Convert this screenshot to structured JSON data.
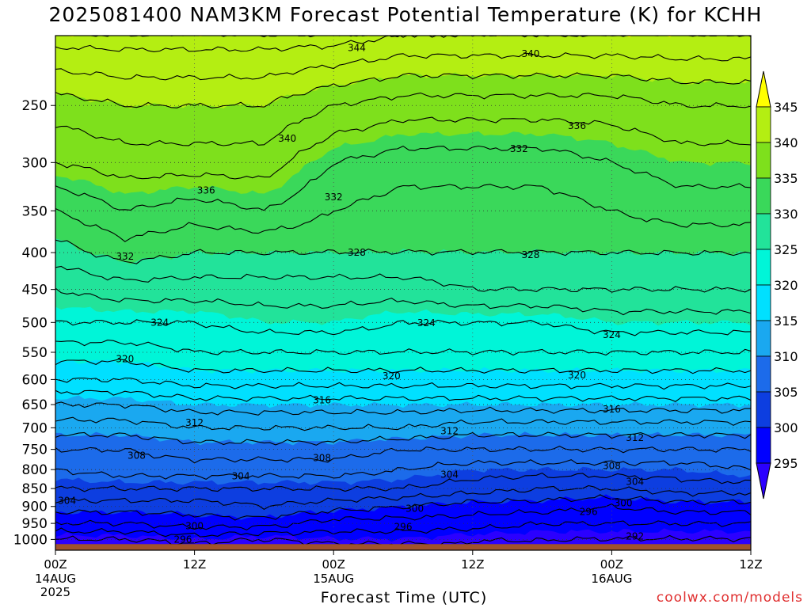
{
  "title": "2025081400 NAM3KM Forecast Potential Temperature (K) for KCHH",
  "credit": "coolwx.com/models",
  "colors": {
    "ground": "#a0522d",
    "contour_line": "#000000",
    "fill_levels": [
      "#2b00ff",
      "#0000ff",
      "#0d3ee0",
      "#1c6bea",
      "#1aa8f0",
      "#00e0ff",
      "#00f5d8",
      "#22e39a",
      "#3ad85a",
      "#7ee01c",
      "#b4ee12",
      "#ffff00"
    ]
  },
  "chart_data": {
    "type": "heatmap",
    "title": "2025081400 NAM3KM Forecast Potential Temperature (K) for KCHH",
    "xlabel": "Forecast Time (UTC)",
    "ylabel": "",
    "x_ticks": [
      {
        "hours": 0,
        "label": "00Z",
        "sub": [
          "14AUG",
          "2025"
        ]
      },
      {
        "hours": 12,
        "label": "12Z",
        "sub": []
      },
      {
        "hours": 24,
        "label": "00Z",
        "sub": [
          "15AUG"
        ]
      },
      {
        "hours": 36,
        "label": "12Z",
        "sub": []
      },
      {
        "hours": 48,
        "label": "00Z",
        "sub": [
          "16AUG"
        ]
      },
      {
        "hours": 60,
        "label": "12Z",
        "sub": []
      }
    ],
    "x_range_hours": [
      0,
      60
    ],
    "y_axis_pressure_hPa": [
      250,
      300,
      350,
      400,
      450,
      500,
      550,
      600,
      650,
      700,
      750,
      800,
      850,
      900,
      950,
      1000
    ],
    "y_range_hPa": [
      200,
      1035
    ],
    "ground_level_hPa": 1015,
    "colorbar": {
      "ticks": [
        345,
        340,
        335,
        330,
        325,
        320,
        315,
        310,
        305,
        300,
        295
      ],
      "levels": [
        290,
        295,
        300,
        305,
        310,
        315,
        320,
        325,
        330,
        335,
        340,
        345,
        350
      ]
    },
    "grid": true,
    "times_hours": [
      0,
      6,
      12,
      18,
      24,
      30,
      36,
      42,
      48,
      54,
      60
    ],
    "theta_profiles": [
      {
        "p": 1010,
        "values": [
          293,
          293,
          294,
          293,
          294,
          294,
          294,
          294,
          293,
          293,
          293
        ]
      },
      {
        "p": 1000,
        "values": [
          294,
          294,
          295,
          294,
          295,
          295,
          294,
          294,
          294,
          294,
          294
        ]
      },
      {
        "p": 950,
        "values": [
          298,
          298,
          299,
          299,
          297,
          297,
          297,
          296,
          296,
          296,
          296
        ]
      },
      {
        "p": 900,
        "values": [
          301,
          301,
          301,
          302,
          301,
          300,
          299,
          299,
          298,
          299,
          299
        ]
      },
      {
        "p": 850,
        "values": [
          304,
          304,
          304,
          304,
          304,
          304,
          303,
          302,
          302,
          303,
          303
        ]
      },
      {
        "p": 800,
        "values": [
          306,
          307,
          307,
          307,
          307,
          306,
          305,
          305,
          305,
          305,
          306
        ]
      },
      {
        "p": 750,
        "values": [
          308,
          308,
          309,
          309,
          309,
          308,
          308,
          308,
          308,
          308,
          308
        ]
      },
      {
        "p": 700,
        "values": [
          311,
          311,
          312,
          312,
          312,
          312,
          311,
          311,
          311,
          311,
          311
        ]
      },
      {
        "p": 650,
        "values": [
          314,
          314,
          315,
          315,
          315,
          315,
          315,
          315,
          315,
          315,
          315
        ]
      },
      {
        "p": 600,
        "values": [
          318,
          318,
          319,
          319,
          319,
          319,
          319,
          319,
          319,
          319,
          319
        ]
      },
      {
        "p": 550,
        "values": [
          321,
          321,
          322,
          322,
          322,
          322,
          322,
          322,
          322,
          322,
          322
        ]
      },
      {
        "p": 500,
        "values": [
          324,
          324,
          324,
          325,
          325,
          324,
          324,
          324,
          325,
          325,
          325
        ]
      },
      {
        "p": 450,
        "values": [
          326,
          327,
          327,
          327,
          327,
          327,
          328,
          328,
          328,
          328,
          328
        ]
      },
      {
        "p": 400,
        "values": [
          329,
          331,
          330,
          330,
          330,
          330,
          330,
          330,
          330,
          330,
          330
        ]
      },
      {
        "p": 350,
        "values": [
          332,
          334,
          333,
          334,
          332,
          331,
          331,
          331,
          332,
          333,
          333
        ]
      },
      {
        "p": 300,
        "values": [
          336,
          337,
          337,
          337,
          334,
          333,
          333,
          333,
          334,
          335,
          335
        ]
      },
      {
        "p": 250,
        "values": [
          339,
          340,
          340,
          340,
          338,
          337,
          337,
          337,
          337,
          338,
          338
        ]
      },
      {
        "p": 200,
        "values": [
          345,
          345,
          345,
          345,
          345,
          344,
          344,
          344,
          344,
          344,
          344
        ]
      }
    ],
    "contour_labels": [
      {
        "text": "344",
        "hours": 26,
        "p": 208
      },
      {
        "text": "340",
        "hours": 41,
        "p": 212
      },
      {
        "text": "340",
        "hours": 20,
        "p": 278
      },
      {
        "text": "336",
        "hours": 45,
        "p": 267
      },
      {
        "text": "332",
        "hours": 40,
        "p": 287
      },
      {
        "text": "336",
        "hours": 13,
        "p": 328
      },
      {
        "text": "332",
        "hours": 24,
        "p": 335
      },
      {
        "text": "332",
        "hours": 6,
        "p": 405
      },
      {
        "text": "328",
        "hours": 26,
        "p": 400
      },
      {
        "text": "328",
        "hours": 41,
        "p": 403
      },
      {
        "text": "324",
        "hours": 9,
        "p": 500
      },
      {
        "text": "324",
        "hours": 32,
        "p": 501
      },
      {
        "text": "324",
        "hours": 48,
        "p": 520
      },
      {
        "text": "320",
        "hours": 6,
        "p": 562
      },
      {
        "text": "320",
        "hours": 29,
        "p": 593
      },
      {
        "text": "320",
        "hours": 45,
        "p": 592
      },
      {
        "text": "316",
        "hours": 23,
        "p": 641
      },
      {
        "text": "316",
        "hours": 48,
        "p": 660
      },
      {
        "text": "312",
        "hours": 12,
        "p": 689
      },
      {
        "text": "312",
        "hours": 34,
        "p": 707
      },
      {
        "text": "312",
        "hours": 50,
        "p": 723
      },
      {
        "text": "308",
        "hours": 7,
        "p": 765
      },
      {
        "text": "308",
        "hours": 23,
        "p": 771
      },
      {
        "text": "308",
        "hours": 48,
        "p": 791
      },
      {
        "text": "304",
        "hours": 16,
        "p": 817
      },
      {
        "text": "304",
        "hours": 34,
        "p": 813
      },
      {
        "text": "304",
        "hours": 50,
        "p": 832
      },
      {
        "text": "304",
        "hours": 1,
        "p": 884
      },
      {
        "text": "300",
        "hours": 31,
        "p": 906
      },
      {
        "text": "300",
        "hours": 49,
        "p": 890
      },
      {
        "text": "296",
        "hours": 46,
        "p": 915
      },
      {
        "text": "296",
        "hours": 30,
        "p": 960
      },
      {
        "text": "300",
        "hours": 12,
        "p": 958
      },
      {
        "text": "296",
        "hours": 11,
        "p": 1000
      },
      {
        "text": "292",
        "hours": 50,
        "p": 990
      }
    ]
  }
}
